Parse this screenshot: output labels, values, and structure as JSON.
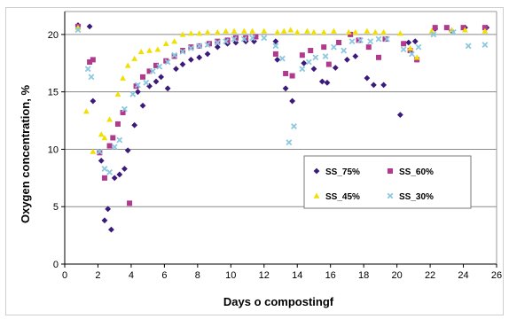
{
  "chart_data": {
    "type": "scatter",
    "xlabel": "Days o compostingf",
    "ylabel": "Oxygen concentration, %",
    "xlim": [
      0,
      26
    ],
    "ylim": [
      0,
      22
    ],
    "xticks": [
      0,
      2,
      4,
      6,
      8,
      10,
      12,
      14,
      16,
      18,
      20,
      22,
      24,
      26
    ],
    "yticks": [
      0,
      5,
      10,
      15,
      20
    ],
    "grid": "horizontal",
    "legend_placement": "center-right",
    "series": [
      {
        "name": "SS_75%",
        "color": "#3c1a7a",
        "marker": "diamond",
        "points": [
          [
            0.8,
            20.8
          ],
          [
            1.5,
            20.7
          ],
          [
            1.7,
            14.2
          ],
          [
            2.2,
            9.0
          ],
          [
            2.4,
            3.8
          ],
          [
            2.6,
            4.8
          ],
          [
            2.8,
            3.0
          ],
          [
            3.0,
            7.5
          ],
          [
            3.3,
            7.8
          ],
          [
            3.6,
            8.3
          ],
          [
            3.8,
            9.9
          ],
          [
            4.2,
            12.1
          ],
          [
            4.4,
            15.0
          ],
          [
            4.7,
            13.8
          ],
          [
            5.1,
            15.5
          ],
          [
            5.5,
            15.9
          ],
          [
            5.8,
            16.3
          ],
          [
            6.2,
            15.3
          ],
          [
            6.7,
            17.0
          ],
          [
            7.1,
            17.4
          ],
          [
            7.6,
            17.8
          ],
          [
            8.1,
            18.0
          ],
          [
            8.6,
            18.3
          ],
          [
            9.2,
            18.9
          ],
          [
            9.8,
            19.2
          ],
          [
            10.3,
            19.3
          ],
          [
            10.9,
            19.4
          ],
          [
            11.4,
            19.4
          ],
          [
            12.7,
            19.4
          ],
          [
            12.8,
            17.8
          ],
          [
            13.3,
            15.3
          ],
          [
            13.7,
            14.2
          ],
          [
            14.4,
            17.5
          ],
          [
            15.0,
            17.0
          ],
          [
            15.5,
            15.9
          ],
          [
            15.8,
            15.8
          ],
          [
            16.3,
            17.1
          ],
          [
            17.0,
            17.8
          ],
          [
            17.5,
            18.1
          ],
          [
            18.2,
            16.2
          ],
          [
            18.6,
            15.6
          ],
          [
            19.2,
            15.6
          ],
          [
            20.2,
            13.0
          ],
          [
            20.7,
            19.3
          ],
          [
            21.1,
            19.4
          ],
          [
            22.3,
            20.5
          ],
          [
            23.3,
            20.3
          ],
          [
            24.1,
            20.6
          ],
          [
            25.4,
            20.6
          ]
        ]
      },
      {
        "name": "SS_60%",
        "color": "#b03a8e",
        "marker": "square",
        "points": [
          [
            0.8,
            20.7
          ],
          [
            1.5,
            17.6
          ],
          [
            1.7,
            17.8
          ],
          [
            2.1,
            9.7
          ],
          [
            2.4,
            7.5
          ],
          [
            2.7,
            10.3
          ],
          [
            2.9,
            11.0
          ],
          [
            3.2,
            12.2
          ],
          [
            3.5,
            13.2
          ],
          [
            3.9,
            5.3
          ],
          [
            4.3,
            15.5
          ],
          [
            4.7,
            16.3
          ],
          [
            5.1,
            16.8
          ],
          [
            5.5,
            17.3
          ],
          [
            6.1,
            17.7
          ],
          [
            6.6,
            18.1
          ],
          [
            7.1,
            18.6
          ],
          [
            7.6,
            18.9
          ],
          [
            8.1,
            19.0
          ],
          [
            8.7,
            19.2
          ],
          [
            9.2,
            19.4
          ],
          [
            9.8,
            19.5
          ],
          [
            10.3,
            19.7
          ],
          [
            10.9,
            19.7
          ],
          [
            11.5,
            19.8
          ],
          [
            12.7,
            18.3
          ],
          [
            13.3,
            16.6
          ],
          [
            13.7,
            16.4
          ],
          [
            14.3,
            18.2
          ],
          [
            14.8,
            18.6
          ],
          [
            15.6,
            18.9
          ],
          [
            15.9,
            17.4
          ],
          [
            16.5,
            19.3
          ],
          [
            17.2,
            20.0
          ],
          [
            17.7,
            19.5
          ],
          [
            18.3,
            18.9
          ],
          [
            18.9,
            18.0
          ],
          [
            19.3,
            19.6
          ],
          [
            20.4,
            19.2
          ],
          [
            20.8,
            18.6
          ],
          [
            21.2,
            17.8
          ],
          [
            22.3,
            20.6
          ],
          [
            23.0,
            20.6
          ],
          [
            24.0,
            20.6
          ],
          [
            25.3,
            20.6
          ]
        ]
      },
      {
        "name": "SS_45%",
        "color": "#f0e000",
        "marker": "triangle",
        "points": [
          [
            0.8,
            20.6
          ],
          [
            1.3,
            13.3
          ],
          [
            1.7,
            9.8
          ],
          [
            2.2,
            11.3
          ],
          [
            2.4,
            11.0
          ],
          [
            2.7,
            12.6
          ],
          [
            3.2,
            14.8
          ],
          [
            3.5,
            16.2
          ],
          [
            3.8,
            17.3
          ],
          [
            4.2,
            17.9
          ],
          [
            4.6,
            18.5
          ],
          [
            5.1,
            18.6
          ],
          [
            5.6,
            18.7
          ],
          [
            6.1,
            19.2
          ],
          [
            6.6,
            19.4
          ],
          [
            7.1,
            20.0
          ],
          [
            7.6,
            20.1
          ],
          [
            8.1,
            20.1
          ],
          [
            8.6,
            20.2
          ],
          [
            9.2,
            20.2
          ],
          [
            9.7,
            20.3
          ],
          [
            10.2,
            20.3
          ],
          [
            10.8,
            20.3
          ],
          [
            11.3,
            20.3
          ],
          [
            12.0,
            20.3
          ],
          [
            12.8,
            20.2
          ],
          [
            13.2,
            20.3
          ],
          [
            13.6,
            20.4
          ],
          [
            14.0,
            20.2
          ],
          [
            14.6,
            20.3
          ],
          [
            15.0,
            20.2
          ],
          [
            15.6,
            20.2
          ],
          [
            16.2,
            20.3
          ],
          [
            17.1,
            20.2
          ],
          [
            17.5,
            20.2
          ],
          [
            18.2,
            20.3
          ],
          [
            18.7,
            20.2
          ],
          [
            19.2,
            20.2
          ],
          [
            20.2,
            20.1
          ],
          [
            20.8,
            18.8
          ],
          [
            21.2,
            18.0
          ],
          [
            22.1,
            20.3
          ],
          [
            23.3,
            20.4
          ],
          [
            24.1,
            20.4
          ],
          [
            25.3,
            20.3
          ]
        ]
      },
      {
        "name": "SS_30%",
        "color": "#8cc8e0",
        "marker": "x",
        "points": [
          [
            0.8,
            20.4
          ],
          [
            1.4,
            17.0
          ],
          [
            1.6,
            16.3
          ],
          [
            2.1,
            9.8
          ],
          [
            2.4,
            8.3
          ],
          [
            2.7,
            8.0
          ],
          [
            3.0,
            10.2
          ],
          [
            3.3,
            10.8
          ],
          [
            3.6,
            13.5
          ],
          [
            4.1,
            14.8
          ],
          [
            4.4,
            15.6
          ],
          [
            4.9,
            15.8
          ],
          [
            5.3,
            16.8
          ],
          [
            5.7,
            17.2
          ],
          [
            6.2,
            17.6
          ],
          [
            6.6,
            18.2
          ],
          [
            7.1,
            18.5
          ],
          [
            7.6,
            18.8
          ],
          [
            8.1,
            19.0
          ],
          [
            8.6,
            19.1
          ],
          [
            9.2,
            19.3
          ],
          [
            9.7,
            19.4
          ],
          [
            10.2,
            19.6
          ],
          [
            10.8,
            19.6
          ],
          [
            11.3,
            19.7
          ],
          [
            12.0,
            19.7
          ],
          [
            12.7,
            19.0
          ],
          [
            13.1,
            17.9
          ],
          [
            13.5,
            10.6
          ],
          [
            13.8,
            12.0
          ],
          [
            14.3,
            17.0
          ],
          [
            14.7,
            17.6
          ],
          [
            15.1,
            18.0
          ],
          [
            15.7,
            18.1
          ],
          [
            16.2,
            18.9
          ],
          [
            16.8,
            18.6
          ],
          [
            17.3,
            19.4
          ],
          [
            17.8,
            19.5
          ],
          [
            18.4,
            19.4
          ],
          [
            18.9,
            19.6
          ],
          [
            19.4,
            19.6
          ],
          [
            20.4,
            18.7
          ],
          [
            20.9,
            18.3
          ],
          [
            21.3,
            18.9
          ],
          [
            22.2,
            20.0
          ],
          [
            23.4,
            20.2
          ],
          [
            24.3,
            19.0
          ],
          [
            25.3,
            19.1
          ]
        ]
      }
    ]
  }
}
